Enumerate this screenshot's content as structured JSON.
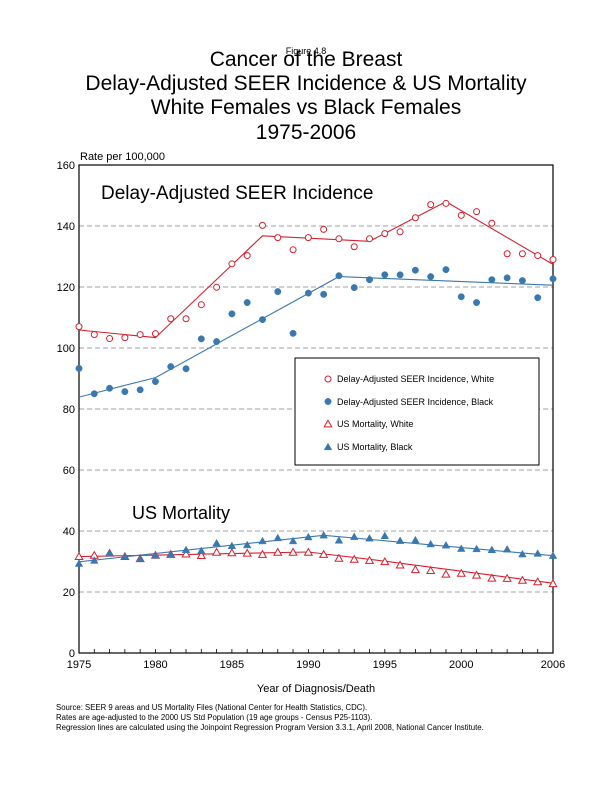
{
  "figure_label": "Figure 4.8",
  "colors": {
    "white_series": "#d6202f",
    "black_series": "#3a78b0",
    "gridline": "#a0a0a0",
    "axis": "#000000"
  },
  "chart_data": {
    "type": "scatter",
    "title": "Cancer of the Breast",
    "subtitle": [
      "Delay-Adjusted SEER Incidence & US Mortality",
      "White Females vs Black Females",
      "1975-2006"
    ],
    "ylabel": "Rate per 100,000",
    "xlabel": "Year of Diagnosis/Death",
    "xlim": [
      1975,
      2006
    ],
    "ylim": [
      0,
      160
    ],
    "x_ticks": [
      1975,
      1980,
      1985,
      1990,
      1995,
      2000,
      2006
    ],
    "x_minor_tick_step": 1,
    "y_ticks": [
      0,
      20,
      40,
      60,
      80,
      100,
      120,
      140,
      160
    ],
    "gridlines": "horizontal-dashed",
    "grid_values": [
      20,
      40,
      60,
      80,
      100,
      120,
      140
    ],
    "legend_placement": "center-right",
    "annotations": [
      {
        "text": "Delay-Adjusted SEER Incidence",
        "near": "top-left"
      },
      {
        "text": "US Mortality",
        "near": "lower-left"
      }
    ],
    "x": [
      1975,
      1976,
      1977,
      1978,
      1979,
      1980,
      1981,
      1982,
      1983,
      1984,
      1985,
      1986,
      1987,
      1988,
      1989,
      1990,
      1991,
      1992,
      1993,
      1994,
      1995,
      1996,
      1997,
      1998,
      1999,
      2000,
      2001,
      2002,
      2003,
      2004,
      2005,
      2006
    ],
    "series": [
      {
        "name": "Delay-Adjusted SEER Incidence, White",
        "marker": "circle-open",
        "color_key": "white_series",
        "values": [
          107.0,
          104.4,
          103.1,
          103.4,
          104.4,
          104.7,
          109.6,
          109.6,
          114.2,
          119.9,
          127.6,
          130.3,
          140.2,
          136.2,
          132.2,
          136.2,
          138.9,
          135.8,
          133.2,
          135.8,
          137.5,
          138.1,
          142.7,
          147.0,
          147.4,
          143.5,
          144.7,
          140.9,
          130.9,
          130.9,
          130.3,
          129.0
        ],
        "trend": [
          [
            1975,
            105.9
          ],
          [
            1980,
            103.4
          ],
          [
            1987,
            136.8
          ],
          [
            1994,
            135.0
          ],
          [
            1999,
            148.0
          ],
          [
            2006,
            127.4
          ]
        ]
      },
      {
        "name": "Delay-Adjusted SEER Incidence, Black",
        "marker": "circle-filled",
        "color_key": "black_series",
        "values": [
          93.3,
          85.0,
          86.8,
          85.7,
          86.3,
          89.0,
          93.9,
          93.2,
          103.0,
          102.1,
          111.2,
          114.9,
          109.3,
          118.5,
          104.8,
          118.0,
          117.6,
          123.7,
          119.8,
          122.4,
          124.0,
          124.0,
          125.5,
          123.4,
          125.7,
          116.8,
          114.9,
          122.4,
          123.0,
          122.1,
          116.5,
          122.7
        ],
        "trend": [
          [
            1975,
            83.9
          ],
          [
            1980,
            90.3
          ],
          [
            1992,
            123.4
          ],
          [
            2006,
            120.6
          ]
        ]
      },
      {
        "name": "US Mortality, White",
        "marker": "triangle-open",
        "color_key": "white_series",
        "values": [
          31.6,
          32.0,
          32.7,
          31.6,
          30.9,
          32.0,
          32.3,
          32.4,
          31.9,
          33.0,
          32.8,
          32.7,
          32.3,
          33.0,
          33.0,
          33.0,
          32.3,
          31.0,
          30.7,
          30.3,
          29.9,
          28.8,
          27.3,
          27.0,
          25.8,
          26.1,
          25.5,
          24.5,
          24.4,
          23.8,
          23.3,
          22.7
        ],
        "trend": [
          [
            1975,
            31.6
          ],
          [
            1990,
            33.1
          ],
          [
            1995,
            30.1
          ],
          [
            2006,
            22.9
          ]
        ]
      },
      {
        "name": "US Mortality, Black",
        "marker": "triangle-filled",
        "color_key": "black_series",
        "values": [
          29.3,
          30.3,
          32.7,
          31.6,
          30.9,
          32.0,
          32.3,
          33.8,
          33.5,
          36.0,
          35.1,
          35.4,
          36.7,
          37.7,
          36.7,
          38.0,
          38.6,
          36.9,
          38.1,
          37.6,
          38.4,
          36.8,
          37.0,
          35.7,
          35.3,
          34.2,
          34.1,
          33.8,
          34.0,
          32.4,
          32.6,
          31.9
        ],
        "trend": [
          [
            1975,
            29.9
          ],
          [
            1991,
            38.6
          ],
          [
            2006,
            31.9
          ]
        ]
      }
    ]
  },
  "footnotes": [
    "Source: SEER 9 areas and US Mortality Files (National Center for Health Statistics, CDC).",
    "Rates are age-adjusted to the 2000 US Std Population (19 age groups - Census P25-1103).",
    "Regression lines are calculated using the Joinpoint Regression Program Version 3.3.1, April 2008, National Cancer Institute."
  ]
}
